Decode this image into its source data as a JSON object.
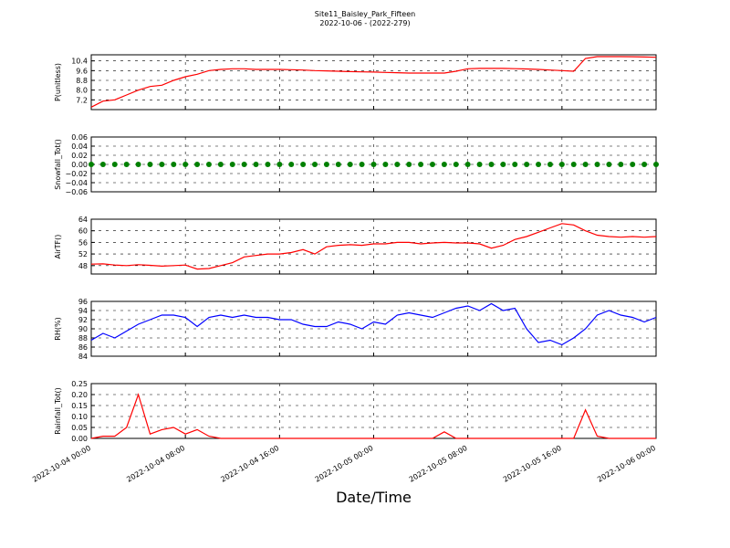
{
  "title": "Site11_Baisley_Park_Fifteen",
  "subtitle": "2022-10-06 - (2022-279)",
  "chart_data": [
    {
      "type": "line",
      "ylabel": "P(unitless)",
      "color": "#ff0000",
      "grid": true,
      "xlim": [
        "2022-10-04 00:00",
        "2022-10-06 00:00"
      ],
      "xticks": [
        "2022-10-04 00:00",
        "2022-10-04 08:00",
        "2022-10-04 16:00",
        "2022-10-05 00:00",
        "2022-10-05 08:00",
        "2022-10-05 16:00",
        "2022-10-06 00:00"
      ],
      "ylim": [
        6.4,
        10.9
      ],
      "yticks": [
        7.2,
        {
          "value": 8,
          "label": "8.0"
        },
        8.8,
        9.6,
        10.4
      ],
      "x": [
        "2022-10-04 00:00",
        "2022-10-04 01:00",
        "2022-10-04 02:00",
        "2022-10-04 03:00",
        "2022-10-04 04:00",
        "2022-10-04 05:00",
        "2022-10-04 06:00",
        "2022-10-04 07:00",
        "2022-10-04 08:00",
        "2022-10-04 09:00",
        "2022-10-04 10:00",
        "2022-10-04 11:00",
        "2022-10-04 12:00",
        "2022-10-04 13:00",
        "2022-10-04 14:00",
        "2022-10-04 15:00",
        "2022-10-04 16:00",
        "2022-10-04 17:00",
        "2022-10-04 18:00",
        "2022-10-04 19:00",
        "2022-10-04 20:00",
        "2022-10-04 21:00",
        "2022-10-04 22:00",
        "2022-10-04 23:00",
        "2022-10-05 00:00",
        "2022-10-05 01:00",
        "2022-10-05 02:00",
        "2022-10-05 03:00",
        "2022-10-05 04:00",
        "2022-10-05 05:00",
        "2022-10-05 06:00",
        "2022-10-05 07:00",
        "2022-10-05 08:00",
        "2022-10-05 09:00",
        "2022-10-05 10:00",
        "2022-10-05 11:00",
        "2022-10-05 12:00",
        "2022-10-05 13:00",
        "2022-10-05 14:00",
        "2022-10-05 15:00",
        "2022-10-05 16:00",
        "2022-10-05 17:00",
        "2022-10-05 18:00",
        "2022-10-05 19:00",
        "2022-10-05 20:00",
        "2022-10-05 21:00",
        "2022-10-05 22:00",
        "2022-10-05 23:00",
        "2022-10-06 00:00"
      ],
      "values": [
        6.6,
        7.1,
        7.2,
        7.6,
        8.0,
        8.3,
        8.4,
        8.8,
        9.1,
        9.3,
        9.6,
        9.7,
        9.75,
        9.75,
        9.7,
        9.7,
        9.7,
        9.68,
        9.65,
        9.6,
        9.58,
        9.55,
        9.52,
        9.5,
        9.48,
        9.45,
        9.43,
        9.4,
        9.4,
        9.4,
        9.4,
        9.55,
        9.75,
        9.78,
        9.78,
        9.78,
        9.76,
        9.74,
        9.7,
        9.65,
        9.6,
        9.55,
        10.6,
        10.75,
        10.75,
        10.75,
        10.74,
        10.72,
        10.7
      ]
    },
    {
      "type": "scatter",
      "ylabel": "Snowfall_Tot()",
      "color": "#008000",
      "grid": true,
      "xlim": [
        "2022-10-04 00:00",
        "2022-10-06 00:00"
      ],
      "xticks": [
        "2022-10-04 00:00",
        "2022-10-04 08:00",
        "2022-10-04 16:00",
        "2022-10-05 00:00",
        "2022-10-05 08:00",
        "2022-10-05 16:00",
        "2022-10-06 00:00"
      ],
      "ylim": [
        -0.06,
        0.06
      ],
      "yticks": [
        {
          "value": -0.06,
          "label": "−0.06"
        },
        {
          "value": -0.04,
          "label": "−0.04"
        },
        {
          "value": -0.02,
          "label": "−0.02"
        },
        {
          "value": 0,
          "label": "0.00"
        },
        {
          "value": 0.02,
          "label": "0.02"
        },
        {
          "value": 0.04,
          "label": "0.04"
        },
        {
          "value": 0.06,
          "label": "0.06"
        }
      ],
      "x": [
        "2022-10-04 00:00",
        "2022-10-04 01:00",
        "2022-10-04 02:00",
        "2022-10-04 03:00",
        "2022-10-04 04:00",
        "2022-10-04 05:00",
        "2022-10-04 06:00",
        "2022-10-04 07:00",
        "2022-10-04 08:00",
        "2022-10-04 09:00",
        "2022-10-04 10:00",
        "2022-10-04 11:00",
        "2022-10-04 12:00",
        "2022-10-04 13:00",
        "2022-10-04 14:00",
        "2022-10-04 15:00",
        "2022-10-04 16:00",
        "2022-10-04 17:00",
        "2022-10-04 18:00",
        "2022-10-04 19:00",
        "2022-10-04 20:00",
        "2022-10-04 21:00",
        "2022-10-04 22:00",
        "2022-10-04 23:00",
        "2022-10-05 00:00",
        "2022-10-05 01:00",
        "2022-10-05 02:00",
        "2022-10-05 03:00",
        "2022-10-05 04:00",
        "2022-10-05 05:00",
        "2022-10-05 06:00",
        "2022-10-05 07:00",
        "2022-10-05 08:00",
        "2022-10-05 09:00",
        "2022-10-05 10:00",
        "2022-10-05 11:00",
        "2022-10-05 12:00",
        "2022-10-05 13:00",
        "2022-10-05 14:00",
        "2022-10-05 15:00",
        "2022-10-05 16:00",
        "2022-10-05 17:00",
        "2022-10-05 18:00",
        "2022-10-05 19:00",
        "2022-10-05 20:00",
        "2022-10-05 21:00",
        "2022-10-05 22:00",
        "2022-10-05 23:00",
        "2022-10-06 00:00"
      ],
      "values": [
        0,
        0,
        0,
        0,
        0,
        0,
        0,
        0,
        0,
        0,
        0,
        0,
        0,
        0,
        0,
        0,
        0,
        0,
        0,
        0,
        0,
        0,
        0,
        0,
        0,
        0,
        0,
        0,
        0,
        0,
        0,
        0,
        0,
        0,
        0,
        0,
        0,
        0,
        0,
        0,
        0,
        0,
        0,
        0,
        0,
        0,
        0,
        0,
        0
      ]
    },
    {
      "type": "line",
      "ylabel": "AirTF()",
      "color": "#ff0000",
      "grid": true,
      "xlim": [
        "2022-10-04 00:00",
        "2022-10-06 00:00"
      ],
      "xticks": [
        "2022-10-04 00:00",
        "2022-10-04 08:00",
        "2022-10-04 16:00",
        "2022-10-05 00:00",
        "2022-10-05 08:00",
        "2022-10-05 16:00",
        "2022-10-06 00:00"
      ],
      "ylim": [
        45.1,
        64
      ],
      "yticks": [
        48,
        52,
        56,
        60,
        64
      ],
      "x": [
        "2022-10-04 00:00",
        "2022-10-04 01:00",
        "2022-10-04 02:00",
        "2022-10-04 03:00",
        "2022-10-04 04:00",
        "2022-10-04 05:00",
        "2022-10-04 06:00",
        "2022-10-04 07:00",
        "2022-10-04 08:00",
        "2022-10-04 09:00",
        "2022-10-04 10:00",
        "2022-10-04 11:00",
        "2022-10-04 12:00",
        "2022-10-04 13:00",
        "2022-10-04 14:00",
        "2022-10-04 15:00",
        "2022-10-04 16:00",
        "2022-10-04 17:00",
        "2022-10-04 18:00",
        "2022-10-04 19:00",
        "2022-10-04 20:00",
        "2022-10-04 21:00",
        "2022-10-04 22:00",
        "2022-10-04 23:00",
        "2022-10-05 00:00",
        "2022-10-05 01:00",
        "2022-10-05 02:00",
        "2022-10-05 03:00",
        "2022-10-05 04:00",
        "2022-10-05 05:00",
        "2022-10-05 06:00",
        "2022-10-05 07:00",
        "2022-10-05 08:00",
        "2022-10-05 09:00",
        "2022-10-05 10:00",
        "2022-10-05 11:00",
        "2022-10-05 12:00",
        "2022-10-05 13:00",
        "2022-10-05 14:00",
        "2022-10-05 15:00",
        "2022-10-05 16:00",
        "2022-10-05 17:00",
        "2022-10-05 18:00",
        "2022-10-05 19:00",
        "2022-10-05 20:00",
        "2022-10-05 21:00",
        "2022-10-05 22:00",
        "2022-10-05 23:00",
        "2022-10-06 00:00"
      ],
      "values": [
        48.5,
        48.6,
        48.2,
        48.0,
        48.3,
        48.1,
        47.8,
        48.0,
        48.2,
        46.8,
        47.0,
        48.0,
        49.0,
        51.0,
        51.5,
        52.0,
        52.0,
        52.5,
        53.5,
        52.0,
        54.5,
        55.0,
        55.2,
        55.0,
        55.5,
        55.5,
        56.0,
        56.0,
        55.5,
        55.8,
        56.0,
        55.8,
        55.8,
        55.5,
        54.0,
        55.0,
        57.0,
        58.0,
        59.5,
        61.0,
        62.5,
        62.0,
        60.0,
        58.5,
        58.0,
        57.8,
        58.0,
        57.8,
        58.0
      ]
    },
    {
      "type": "line",
      "ylabel": "RH(%)",
      "color": "#0000ff",
      "grid": true,
      "xlim": [
        "2022-10-04 00:00",
        "2022-10-06 00:00"
      ],
      "xticks": [
        "2022-10-04 00:00",
        "2022-10-04 08:00",
        "2022-10-04 16:00",
        "2022-10-05 00:00",
        "2022-10-05 08:00",
        "2022-10-05 16:00",
        "2022-10-06 00:00"
      ],
      "ylim": [
        84,
        96
      ],
      "yticks": [
        84,
        86,
        88,
        90,
        92,
        94,
        96
      ],
      "x": [
        "2022-10-04 00:00",
        "2022-10-04 01:00",
        "2022-10-04 02:00",
        "2022-10-04 03:00",
        "2022-10-04 04:00",
        "2022-10-04 05:00",
        "2022-10-04 06:00",
        "2022-10-04 07:00",
        "2022-10-04 08:00",
        "2022-10-04 09:00",
        "2022-10-04 10:00",
        "2022-10-04 11:00",
        "2022-10-04 12:00",
        "2022-10-04 13:00",
        "2022-10-04 14:00",
        "2022-10-04 15:00",
        "2022-10-04 16:00",
        "2022-10-04 17:00",
        "2022-10-04 18:00",
        "2022-10-04 19:00",
        "2022-10-04 20:00",
        "2022-10-04 21:00",
        "2022-10-04 22:00",
        "2022-10-04 23:00",
        "2022-10-05 00:00",
        "2022-10-05 01:00",
        "2022-10-05 02:00",
        "2022-10-05 03:00",
        "2022-10-05 04:00",
        "2022-10-05 05:00",
        "2022-10-05 06:00",
        "2022-10-05 07:00",
        "2022-10-05 08:00",
        "2022-10-05 09:00",
        "2022-10-05 10:00",
        "2022-10-05 11:00",
        "2022-10-05 12:00",
        "2022-10-05 13:00",
        "2022-10-05 14:00",
        "2022-10-05 15:00",
        "2022-10-05 16:00",
        "2022-10-05 17:00",
        "2022-10-05 18:00",
        "2022-10-05 19:00",
        "2022-10-05 20:00",
        "2022-10-05 21:00",
        "2022-10-05 22:00",
        "2022-10-05 23:00",
        "2022-10-06 00:00"
      ],
      "values": [
        87.5,
        89,
        88,
        89.5,
        91,
        92,
        93,
        93,
        92.5,
        90.5,
        92.5,
        93,
        92.5,
        93,
        92.5,
        92.5,
        92,
        92,
        91,
        90.5,
        90.5,
        91.5,
        91,
        90,
        91.5,
        91,
        93,
        93.5,
        93,
        92.5,
        93.5,
        94.5,
        95,
        94,
        95.5,
        94,
        94.5,
        90,
        87,
        87.5,
        86.5,
        88,
        90,
        93,
        94,
        93,
        92.5,
        91.5,
        92.5
      ]
    },
    {
      "type": "line",
      "ylabel": "Rainfall_Tot()",
      "xlabel": "Date/Time",
      "color": "#ff0000",
      "grid": true,
      "xlim": [
        "2022-10-04 00:00",
        "2022-10-06 00:00"
      ],
      "xticks": [
        "2022-10-04 00:00",
        "2022-10-04 08:00",
        "2022-10-04 16:00",
        "2022-10-05 00:00",
        "2022-10-05 08:00",
        "2022-10-05 16:00",
        "2022-10-06 00:00"
      ],
      "ylim": [
        0,
        0.25
      ],
      "yticks": [
        {
          "value": 0,
          "label": "0.00"
        },
        0.05,
        {
          "value": 0.1,
          "label": "0.10"
        },
        0.15,
        {
          "value": 0.2,
          "label": "0.20"
        },
        0.25
      ],
      "x": [
        "2022-10-04 00:00",
        "2022-10-04 01:00",
        "2022-10-04 02:00",
        "2022-10-04 03:00",
        "2022-10-04 04:00",
        "2022-10-04 05:00",
        "2022-10-04 06:00",
        "2022-10-04 07:00",
        "2022-10-04 08:00",
        "2022-10-04 09:00",
        "2022-10-04 10:00",
        "2022-10-04 11:00",
        "2022-10-04 12:00",
        "2022-10-04 13:00",
        "2022-10-04 14:00",
        "2022-10-04 15:00",
        "2022-10-04 16:00",
        "2022-10-04 17:00",
        "2022-10-04 18:00",
        "2022-10-04 19:00",
        "2022-10-04 20:00",
        "2022-10-04 21:00",
        "2022-10-04 22:00",
        "2022-10-04 23:00",
        "2022-10-05 00:00",
        "2022-10-05 01:00",
        "2022-10-05 02:00",
        "2022-10-05 03:00",
        "2022-10-05 04:00",
        "2022-10-05 05:00",
        "2022-10-05 06:00",
        "2022-10-05 07:00",
        "2022-10-05 08:00",
        "2022-10-05 09:00",
        "2022-10-05 10:00",
        "2022-10-05 11:00",
        "2022-10-05 12:00",
        "2022-10-05 13:00",
        "2022-10-05 14:00",
        "2022-10-05 15:00",
        "2022-10-05 16:00",
        "2022-10-05 17:00",
        "2022-10-05 18:00",
        "2022-10-05 19:00",
        "2022-10-05 20:00",
        "2022-10-05 21:00",
        "2022-10-05 22:00",
        "2022-10-05 23:00",
        "2022-10-06 00:00"
      ],
      "values": [
        0,
        0.01,
        0.01,
        0.05,
        0.2,
        0.02,
        0.04,
        0.05,
        0.02,
        0.04,
        0.01,
        0,
        0,
        0,
        0,
        0,
        0,
        0,
        0,
        0,
        0,
        0,
        0,
        0,
        0,
        0,
        0,
        0,
        0,
        0,
        0.03,
        0,
        0,
        0,
        0,
        0,
        0,
        0,
        0,
        0,
        0,
        0,
        0.13,
        0.01,
        0,
        0,
        0,
        0,
        0
      ]
    }
  ]
}
